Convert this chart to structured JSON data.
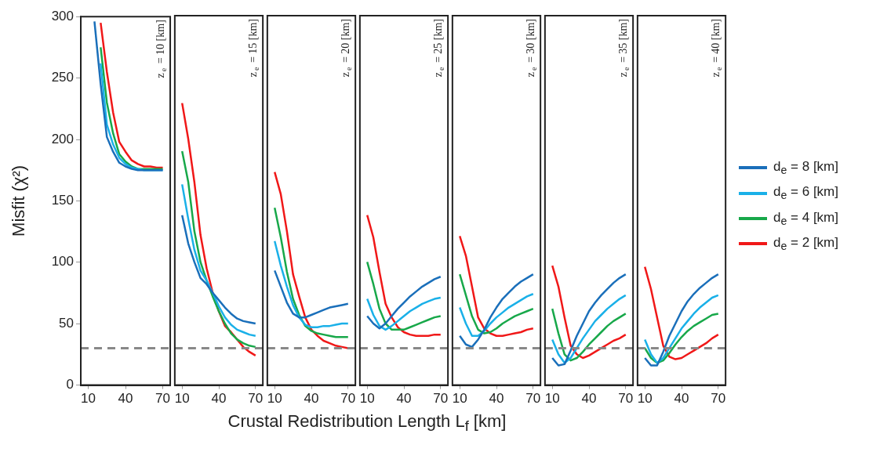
{
  "chart_data": [
    {
      "type": "line",
      "title": "z$_{e}$ = 10 [km]",
      "xlabel": "Crustal Redistribution Length L$_{f}$ [km]",
      "ylabel": "Misfit (χ²)",
      "x": [
        15,
        20,
        25,
        30,
        35,
        40,
        45,
        50,
        55,
        60,
        65,
        70
      ],
      "xlim": [
        4,
        76
      ],
      "xticks": [
        10,
        40,
        70
      ],
      "ylim": [
        0,
        300
      ],
      "yticks": [
        0,
        50,
        100,
        150,
        200,
        250,
        300
      ],
      "ref_lines": [
        {
          "axis": "y",
          "value": 30,
          "color": "#888888",
          "line_style": "dashed"
        }
      ],
      "series": [
        {
          "color": "#1a6fba",
          "values": [
            296,
            245,
            202,
            190,
            181,
            178,
            176,
            175,
            175,
            175,
            175,
            175
          ]
        },
        {
          "color": "#1ab0e8",
          "values": [
            null,
            262,
            212,
            196,
            185,
            180,
            177,
            176,
            175,
            175,
            175,
            175
          ]
        },
        {
          "color": "#18a84a",
          "values": [
            null,
            275,
            230,
            205,
            188,
            182,
            178,
            176,
            176,
            176,
            176,
            176
          ]
        },
        {
          "color": "#f01818",
          "values": [
            null,
            295,
            255,
            222,
            198,
            190,
            183,
            180,
            178,
            178,
            177,
            177
          ]
        }
      ]
    },
    {
      "type": "line",
      "title": "z$_{e}$ = 15 [km]",
      "tick_labels": "x",
      "x": [
        10,
        15,
        20,
        25,
        30,
        35,
        40,
        45,
        50,
        55,
        60,
        65,
        70
      ],
      "xlim": [
        4,
        76
      ],
      "xticks": [
        10,
        40,
        70
      ],
      "ylim": [
        0,
        300
      ],
      "ref_lines": [
        {
          "axis": "y",
          "value": 30,
          "color": "#888888",
          "line_style": "dashed"
        }
      ],
      "series": [
        {
          "color": "#1a6fba",
          "values": [
            138,
            115,
            100,
            87,
            82,
            75,
            69,
            63,
            58,
            54,
            52,
            51,
            50
          ]
        },
        {
          "color": "#1ab0e8",
          "values": [
            163,
            135,
            110,
            93,
            85,
            75,
            64,
            55,
            49,
            45,
            43,
            41,
            40
          ]
        },
        {
          "color": "#18a84a",
          "values": [
            190,
            165,
            125,
            100,
            85,
            72,
            60,
            50,
            42,
            37,
            34,
            32,
            31
          ]
        },
        {
          "color": "#f01818",
          "values": [
            229,
            200,
            165,
            122,
            95,
            75,
            60,
            48,
            43,
            37,
            31,
            27,
            24
          ]
        }
      ]
    },
    {
      "type": "line",
      "title": "z$_{e}$ = 20 [km]",
      "tick_labels": "x",
      "x": [
        10,
        15,
        20,
        25,
        30,
        35,
        40,
        45,
        50,
        55,
        60,
        65,
        70
      ],
      "xlim": [
        4,
        76
      ],
      "xticks": [
        10,
        40,
        70
      ],
      "ylim": [
        0,
        300
      ],
      "ref_lines": [
        {
          "axis": "y",
          "value": 30,
          "color": "#888888",
          "line_style": "dashed"
        }
      ],
      "series": [
        {
          "color": "#1a6fba",
          "values": [
            93,
            80,
            67,
            58,
            55,
            55,
            57,
            59,
            61,
            63,
            64,
            65,
            66
          ]
        },
        {
          "color": "#1ab0e8",
          "values": [
            117,
            97,
            80,
            65,
            55,
            49,
            47,
            47,
            48,
            48,
            49,
            50,
            50
          ]
        },
        {
          "color": "#18a84a",
          "values": [
            144,
            120,
            92,
            70,
            57,
            48,
            44,
            42,
            41,
            40,
            39,
            39,
            39
          ]
        },
        {
          "color": "#f01818",
          "values": [
            173,
            155,
            125,
            90,
            72,
            55,
            45,
            40,
            36,
            34,
            32,
            31,
            30
          ]
        }
      ]
    },
    {
      "type": "line",
      "title": "z$_{e}$ = 25 [km]",
      "tick_labels": "x",
      "x": [
        10,
        15,
        20,
        25,
        30,
        35,
        40,
        45,
        50,
        55,
        60,
        65,
        70
      ],
      "xlim": [
        4,
        76
      ],
      "xticks": [
        10,
        40,
        70
      ],
      "ylim": [
        0,
        300
      ],
      "ref_lines": [
        {
          "axis": "y",
          "value": 30,
          "color": "#888888",
          "line_style": "dashed"
        }
      ],
      "series": [
        {
          "color": "#1a6fba",
          "values": [
            56,
            50,
            46,
            50,
            56,
            62,
            67,
            72,
            76,
            80,
            83,
            86,
            88
          ]
        },
        {
          "color": "#1ab0e8",
          "values": [
            70,
            57,
            48,
            45,
            48,
            52,
            56,
            60,
            63,
            66,
            68,
            70,
            71
          ]
        },
        {
          "color": "#18a84a",
          "values": [
            100,
            82,
            62,
            50,
            45,
            45,
            45,
            47,
            49,
            51,
            53,
            55,
            56
          ]
        },
        {
          "color": "#f01818",
          "values": [
            138,
            120,
            92,
            66,
            55,
            47,
            43,
            41,
            40,
            40,
            40,
            41,
            41
          ]
        }
      ]
    },
    {
      "type": "line",
      "title": "z$_{e}$ = 30 [km]",
      "tick_labels": "x",
      "x": [
        10,
        15,
        20,
        25,
        30,
        35,
        40,
        45,
        50,
        55,
        60,
        65,
        70
      ],
      "xlim": [
        4,
        76
      ],
      "xticks": [
        10,
        40,
        70
      ],
      "ylim": [
        0,
        300
      ],
      "ref_lines": [
        {
          "axis": "y",
          "value": 30,
          "color": "#888888",
          "line_style": "dashed"
        }
      ],
      "series": [
        {
          "color": "#1a6fba",
          "values": [
            40,
            33,
            31,
            37,
            45,
            55,
            63,
            70,
            75,
            80,
            84,
            87,
            90
          ]
        },
        {
          "color": "#1ab0e8",
          "values": [
            63,
            50,
            40,
            40,
            44,
            50,
            55,
            59,
            63,
            66,
            69,
            72,
            74
          ]
        },
        {
          "color": "#18a84a",
          "values": [
            90,
            73,
            56,
            45,
            42,
            43,
            46,
            50,
            53,
            56,
            58,
            60,
            62
          ]
        },
        {
          "color": "#f01818",
          "values": [
            121,
            105,
            80,
            55,
            46,
            42,
            40,
            40,
            41,
            42,
            43,
            45,
            46
          ]
        }
      ]
    },
    {
      "type": "line",
      "title": "z$_{e}$ = 35 [km]",
      "tick_labels": "x",
      "x": [
        10,
        15,
        20,
        25,
        30,
        35,
        40,
        45,
        50,
        55,
        60,
        65,
        70
      ],
      "xlim": [
        4,
        76
      ],
      "xticks": [
        10,
        40,
        70
      ],
      "ylim": [
        0,
        300
      ],
      "ref_lines": [
        {
          "axis": "y",
          "value": 30,
          "color": "#888888",
          "line_style": "dashed"
        }
      ],
      "series": [
        {
          "color": "#1a6fba",
          "values": [
            22,
            16,
            17,
            28,
            40,
            50,
            60,
            67,
            73,
            78,
            83,
            87,
            90
          ]
        },
        {
          "color": "#1ab0e8",
          "values": [
            37,
            25,
            18,
            22,
            30,
            38,
            45,
            52,
            57,
            62,
            66,
            70,
            73
          ]
        },
        {
          "color": "#18a84a",
          "values": [
            62,
            42,
            25,
            20,
            22,
            27,
            33,
            38,
            43,
            48,
            52,
            55,
            58
          ]
        },
        {
          "color": "#f01818",
          "values": [
            97,
            80,
            55,
            32,
            25,
            22,
            24,
            27,
            30,
            33,
            36,
            38,
            41
          ]
        }
      ]
    },
    {
      "type": "line",
      "title": "z$_{e}$ = 40 [km]",
      "tick_labels": "x",
      "legend": "right",
      "x": [
        10,
        15,
        20,
        25,
        30,
        35,
        40,
        45,
        50,
        55,
        60,
        65,
        70
      ],
      "xlim": [
        4,
        76
      ],
      "xticks": [
        10,
        40,
        70
      ],
      "ylim": [
        0,
        300
      ],
      "ref_lines": [
        {
          "axis": "y",
          "value": 30,
          "color": "#888888",
          "line_style": "dashed"
        }
      ],
      "series": [
        {
          "name": "d$_{e}$ = 8 [km]",
          "color": "#1a6fba",
          "values": [
            22,
            16,
            16,
            27,
            40,
            50,
            60,
            68,
            74,
            79,
            83,
            87,
            90
          ]
        },
        {
          "name": "d$_{e}$ = 6 [km]",
          "color": "#1ab0e8",
          "values": [
            37,
            25,
            18,
            22,
            30,
            38,
            46,
            52,
            58,
            63,
            67,
            71,
            73
          ]
        },
        {
          "name": "d$_{e}$ = 4 [km]",
          "color": "#18a84a",
          "values": [
            30,
            22,
            18,
            20,
            26,
            33,
            39,
            44,
            48,
            51,
            54,
            57,
            58
          ]
        },
        {
          "name": "d$_{e}$ = 2 [km]",
          "color": "#f01818",
          "values": [
            96,
            78,
            55,
            32,
            23,
            21,
            22,
            25,
            28,
            31,
            34,
            38,
            41
          ]
        }
      ]
    }
  ]
}
